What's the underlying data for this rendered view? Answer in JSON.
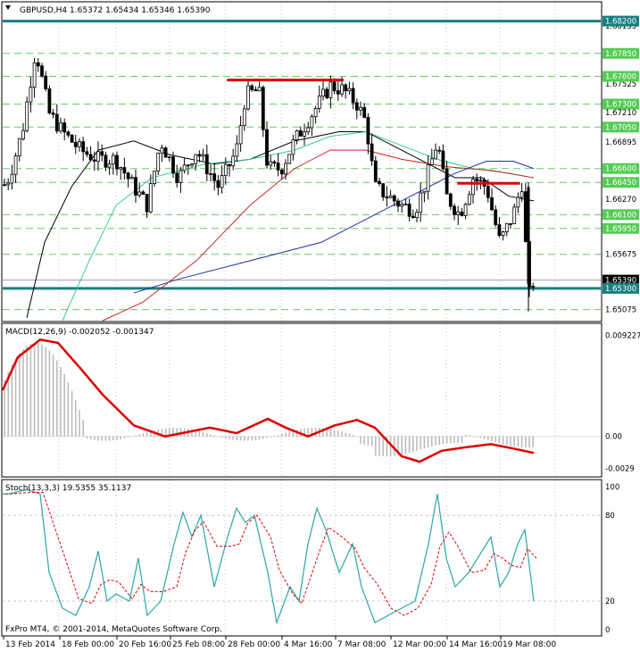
{
  "window": {
    "title": "GBPUSD,H4",
    "ohlc": "1.65372 1.65434 1.65346 1.65390",
    "copyright": "FxPro MT4, © 2001-2014, MetaQuotes Software Corp."
  },
  "price_panel": {
    "ylim": [
      1.6495,
      1.684
    ],
    "levels": [
      {
        "price": 1.682,
        "label": "1.68200",
        "style": "teal-line",
        "tag": "teal"
      },
      {
        "price": 1.6785,
        "label": "1.67850",
        "style": "dash",
        "tag": "green"
      },
      {
        "price": 1.676,
        "label": "1.67600",
        "style": "dash",
        "tag": "green"
      },
      {
        "price": 1.673,
        "label": "1.67300",
        "style": "dash",
        "tag": "green"
      },
      {
        "price": 1.6705,
        "label": "1.67050",
        "style": "dash",
        "tag": "green"
      },
      {
        "price": 1.666,
        "label": "1.66600",
        "style": "dash",
        "tag": "green"
      },
      {
        "price": 1.6645,
        "label": "1.66450",
        "style": "dash",
        "tag": "green"
      },
      {
        "price": 1.661,
        "label": "1.66100",
        "style": "dash",
        "tag": "green"
      },
      {
        "price": 1.6595,
        "label": "1.65950",
        "style": "dash",
        "tag": "green"
      },
      {
        "price": 1.6567,
        "label": "1.65675",
        "style": "dash",
        "tag": "none"
      },
      {
        "price": 1.6539,
        "label": "1.65390",
        "style": "bid",
        "tag": "black"
      },
      {
        "price": 1.653,
        "label": "1.65300",
        "style": "teal-line",
        "tag": "teal"
      },
      {
        "price": 1.6507,
        "label": "1.65075",
        "style": "dash",
        "tag": "none"
      }
    ],
    "scale_labels": [
      {
        "price": 1.6815,
        "label": "1.68155"
      },
      {
        "price": 1.6752,
        "label": "1.67525"
      },
      {
        "price": 1.6721,
        "label": "1.67210"
      },
      {
        "price": 1.6689,
        "label": "1.66895"
      },
      {
        "price": 1.6627,
        "label": "1.66270"
      }
    ],
    "resistance_lines": [
      {
        "x1": 0.375,
        "x2": 0.57,
        "price": 1.6756
      },
      {
        "x1": 0.76,
        "x2": 0.865,
        "price": 1.6644
      }
    ]
  },
  "macd_panel": {
    "label": "MACD(12,26,9) -0.002052 -0.001347",
    "scale_labels": [
      "0.009227",
      "0.00",
      "-0.0029"
    ],
    "ylim": [
      -0.0036,
      0.0102
    ]
  },
  "stoch_panel": {
    "label": "Stoch(13,3,3) 19.5355 35.1137",
    "scale_labels": [
      "100",
      "80",
      "20",
      "0"
    ],
    "ylim": [
      0,
      100
    ]
  },
  "time_axis": [
    "13 Feb 2014",
    "18 Feb 00:00",
    "20 Feb 16:00",
    "25 Feb 08:00",
    "28 Feb 00:00",
    "4 Mar 16:00",
    "7 Mar 08:00",
    "12 Mar 00:00",
    "14 Mar 16:00",
    "19 Mar 08:00"
  ],
  "colors": {
    "grid": "#c8c8c8",
    "level_dash": "#66cc66",
    "teal": "#1a7f7f",
    "red": "#dd0000",
    "macd_signal": "#dd0000",
    "macd_hist": "#b8b8b8",
    "stoch_main": "#2aa6a6",
    "stoch_signal": "#dd0000",
    "ma_black": "#000000",
    "ma_green": "#33cc99",
    "ma_red": "#cc2222",
    "ma_blue": "#1f2fa8"
  }
}
